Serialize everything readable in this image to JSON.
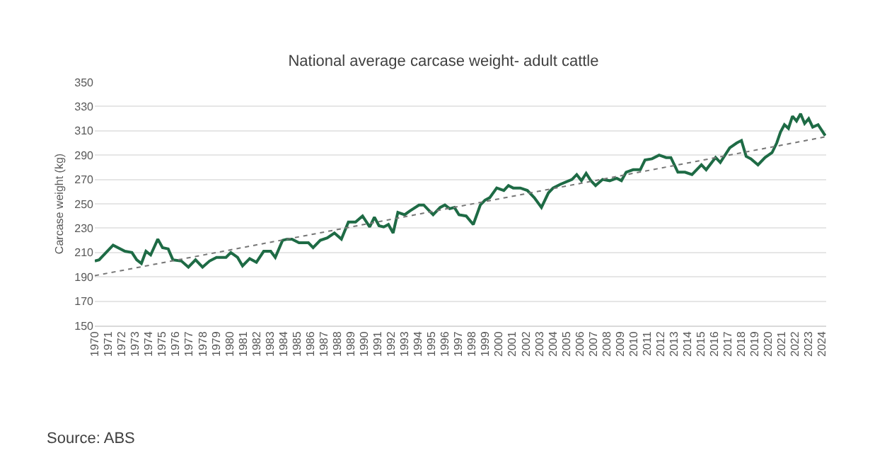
{
  "chart_data": {
    "type": "line",
    "title": "National average carcase weight- adult cattle",
    "ylabel": "Carcase weight (kg)",
    "annotations": [
      "Source: ABS"
    ],
    "xlim": [
      1970,
      2024.3
    ],
    "xticks": [
      1970,
      1971,
      1972,
      1973,
      1974,
      1975,
      1976,
      1977,
      1978,
      1979,
      1980,
      1981,
      1982,
      1983,
      1984,
      1985,
      1986,
      1987,
      1988,
      1989,
      1990,
      1991,
      1992,
      1993,
      1994,
      1995,
      1996,
      1997,
      1998,
      1999,
      2000,
      2001,
      2002,
      2003,
      2004,
      2005,
      2006,
      2007,
      2008,
      2009,
      2010,
      2011,
      2012,
      2013,
      2014,
      2015,
      2016,
      2017,
      2018,
      2019,
      2020,
      2021,
      2022,
      2023,
      2024
    ],
    "ylim": [
      150,
      350
    ],
    "yticks": [
      150,
      170,
      190,
      210,
      230,
      250,
      270,
      290,
      310,
      330,
      350
    ],
    "grid": "y",
    "marker": "none",
    "series": [
      {
        "color": "#1e6b45",
        "line_style": "solid",
        "x": [
          1970.0,
          1970.32,
          1971.36,
          1972.24,
          1972.76,
          1973.11,
          1973.46,
          1973.8,
          1974.15,
          1974.68,
          1975.03,
          1975.45,
          1975.8,
          1976.43,
          1976.95,
          1977.48,
          1978.0,
          1978.52,
          1979.04,
          1979.74,
          1980.1,
          1980.6,
          1980.97,
          1981.5,
          1982.0,
          1982.54,
          1983.06,
          1983.4,
          1983.94,
          1984.29,
          1984.64,
          1985.16,
          1985.86,
          1986.21,
          1986.74,
          1987.26,
          1987.79,
          1988.31,
          1988.83,
          1989.36,
          1989.88,
          1990.41,
          1990.76,
          1991.1,
          1991.45,
          1991.8,
          1992.15,
          1992.5,
          1993.0,
          1993.37,
          1994.07,
          1994.42,
          1994.77,
          1995.12,
          1995.64,
          1995.99,
          1996.35,
          1996.7,
          1997.04,
          1997.57,
          1998.1,
          1998.62,
          1998.97,
          1999.32,
          1999.84,
          2000.37,
          2000.71,
          2001.06,
          2001.59,
          2002.11,
          2002.63,
          2003.16,
          2003.68,
          2004.03,
          2004.56,
          2005.43,
          2005.78,
          2006.13,
          2006.48,
          2006.83,
          2007.18,
          2007.7,
          2008.23,
          2008.75,
          2009.1,
          2009.45,
          2009.97,
          2010.5,
          2010.85,
          2011.37,
          2011.9,
          2012.42,
          2012.77,
          2013.29,
          2013.82,
          2014.34,
          2015.04,
          2015.39,
          2016.09,
          2016.44,
          2017.14,
          2017.66,
          2018.01,
          2018.36,
          2018.71,
          2019.24,
          2019.76,
          2020.28,
          2020.63,
          2020.91,
          2021.2,
          2021.5,
          2021.8,
          2022.1,
          2022.4,
          2022.7,
          2023.0,
          2023.3,
          2023.7,
          2024.23
        ],
        "values": [
          203,
          204,
          216,
          211,
          210,
          204,
          201,
          211,
          208,
          221,
          214,
          213,
          204,
          203,
          198,
          204,
          198,
          203,
          206,
          206,
          210,
          206,
          199,
          205,
          202,
          211,
          211,
          206,
          220,
          221,
          221,
          218,
          218,
          214,
          220,
          222,
          226,
          221,
          235,
          235,
          240,
          231,
          239,
          232,
          231,
          233,
          226,
          243,
          241,
          244,
          249,
          249,
          245,
          241,
          247,
          249,
          246,
          247,
          241,
          240,
          233,
          249,
          253,
          255,
          263,
          261,
          265,
          263,
          263,
          261,
          255,
          247,
          259,
          263,
          266,
          270,
          274,
          269,
          275,
          269,
          265,
          270,
          269,
          271,
          269,
          276,
          278,
          278,
          286,
          287,
          290,
          288,
          288,
          276,
          276,
          274,
          282,
          278,
          288,
          284,
          296,
          300,
          302,
          289,
          287,
          282,
          288,
          292,
          300,
          309,
          315,
          312,
          322,
          318,
          324,
          316,
          320,
          313,
          315,
          306
        ]
      },
      {
        "color": "#777777",
        "line_style": "dotted",
        "x": [
          1970.0,
          2024.23
        ],
        "values": [
          191,
          305
        ]
      }
    ]
  }
}
